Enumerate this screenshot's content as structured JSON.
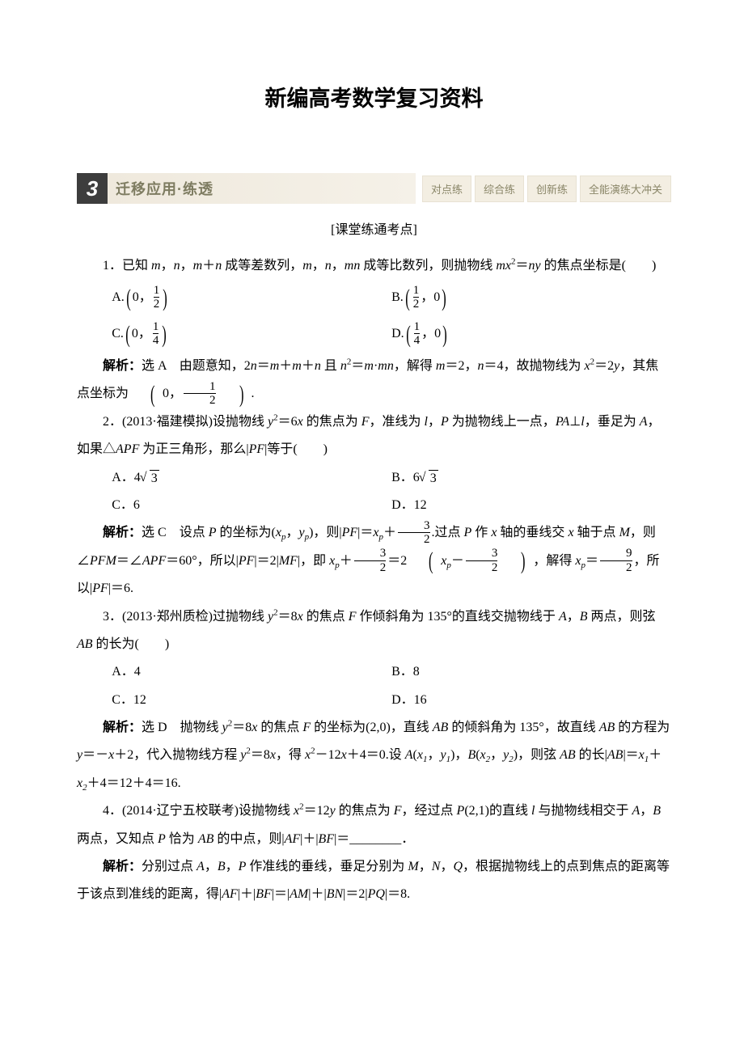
{
  "title": "新编高考数学复习资料",
  "header": {
    "num": "3",
    "label": "迁移应用·练透",
    "buttons": [
      "对点练",
      "综合练",
      "创新练",
      "全能演练大冲关"
    ]
  },
  "section_label": "[课堂练通考点]",
  "q1": {
    "stem_a": "1．已知 ",
    "stem_b": "m",
    "stem_c": "，",
    "stem_d": "n",
    "stem_e": "，",
    "stem_f": "m",
    "stem_g": "＋",
    "stem_h": "n",
    "stem_i": " 成等差数列，",
    "stem_j": "m",
    "stem_k": "，",
    "stem_l": "n",
    "stem_m": "，",
    "stem_n": "mn",
    "stem_o": " 成等比数列，则抛物线 ",
    "stem_p": "mx",
    "stem_q": "＝",
    "stem_r": "ny",
    "stem_s": " 的焦点坐标是(　　)",
    "optA_pre": "A.",
    "optA_1": "0，",
    "optA_num": "1",
    "optA_den": "2",
    "optB_pre": "B.",
    "optB_num": "1",
    "optB_den": "2",
    "optB_2": "，0",
    "optC_pre": "C.",
    "optC_1": "0，",
    "optC_num": "1",
    "optC_den": "4",
    "optD_pre": "D.",
    "optD_num": "1",
    "optD_den": "4",
    "optD_2": "，0",
    "expl_label": "解析：",
    "expl_a": "选 A　由题意知，2",
    "expl_b": "n",
    "expl_c": "＝",
    "expl_d": "m",
    "expl_e": "＋",
    "expl_f": "m",
    "expl_g": "＋",
    "expl_h": "n",
    "expl_i": " 且 ",
    "expl_j": "n",
    "expl_k": "＝",
    "expl_l": "m",
    "expl_m": "·",
    "expl_n": "mn",
    "expl_o": "，解得 ",
    "expl_p": "m",
    "expl_q": "＝2，",
    "expl_r": "n",
    "expl_s": "＝4，故抛物线为 ",
    "expl_t": "x",
    "expl_u": "＝2",
    "expl_v": "y",
    "expl_w": "，其焦点坐标为",
    "expl_x": "0，",
    "expl_num": "1",
    "expl_den": "2",
    "expl_end": "."
  },
  "q2": {
    "stem_a": "2．(2013·福建模拟)设抛物线 ",
    "stem_b": "y",
    "stem_c": "＝6",
    "stem_d": "x",
    "stem_e": " 的焦点为 ",
    "stem_f": "F",
    "stem_g": "，准线为 ",
    "stem_h": "l",
    "stem_i": "，",
    "stem_j": "P",
    "stem_k": " 为抛物线上一点，",
    "stem_l": "PA",
    "stem_m": "⊥",
    "stem_n": "l",
    "stem_o": "，垂足为 ",
    "stem_p": "A",
    "stem_q": "，如果△",
    "stem_r": "APF",
    "stem_s": " 为正三角形，那么|",
    "stem_t": "PF",
    "stem_u": "|等于(　　)",
    "optA": "A．4",
    "optA_r": "3",
    "optB": "B．6",
    "optB_r": "3",
    "optC": "C．6",
    "optD": "D．12",
    "expl_label": "解析：",
    "e1": "选 C　设点 ",
    "e2": "P",
    "e3": " 的坐标为(",
    "e4": "x",
    "e5": "，",
    "e6": "y",
    "e7": ")，则|",
    "e8": "PF",
    "e9": "|＝",
    "e10": "x",
    "e11": "＋",
    "e_num1": "3",
    "e_den1": "2",
    "e12": ".过点 ",
    "e13": "P",
    "e14": " 作 ",
    "e15": "x",
    "e16": " 轴的垂线交 ",
    "e17": "x",
    "e18": " 轴于点 ",
    "e19": "M",
    "e20": "，则∠",
    "e21": "PFM",
    "e22": "＝∠",
    "e23": "APF",
    "e24": "＝60°，所以|",
    "e25": "PF",
    "e26": "|＝2|",
    "e27": "MF",
    "e28": "|，即 ",
    "e29": "x",
    "e30": "＋",
    "e_num2": "3",
    "e_den2": "2",
    "e31": "＝2",
    "e32": "x",
    "e33": "－",
    "e_num3": "3",
    "e_den3": "2",
    "e34": "，解得 ",
    "e35": "x",
    "e36": "＝",
    "e_num4": "9",
    "e_den4": "2",
    "e37": "，所以|",
    "e38": "PF",
    "e39": "|＝6."
  },
  "q3": {
    "stem_a": "3．(2013·郑州质检)过抛物线 ",
    "stem_b": "y",
    "stem_c": "＝8",
    "stem_d": "x",
    "stem_e": " 的焦点 ",
    "stem_f": "F",
    "stem_g": " 作倾斜角为 135°的直线交抛物线于 ",
    "stem_h": "A",
    "stem_i": "，",
    "stem_j": "B",
    "stem_k": " 两点，则弦 ",
    "stem_l": "AB",
    "stem_m": " 的长为(　　)",
    "optA": "A．4",
    "optB": "B．8",
    "optC": "C．12",
    "optD": "D．16",
    "expl_label": "解析：",
    "e1": "选 D　抛物线 ",
    "e2": "y",
    "e3": "＝8",
    "e4": "x",
    "e5": " 的焦点 ",
    "e6": "F",
    "e7": " 的坐标为(2,0)，直线 ",
    "e8": "AB",
    "e9": " 的倾斜角为 135°，故直线 ",
    "e10": "AB",
    "e11": " 的方程为 ",
    "e12": "y",
    "e13": "＝－",
    "e14": "x",
    "e15": "＋2，代入抛物线方程 ",
    "e16": "y",
    "e17": "＝8",
    "e18": "x",
    "e19": "，得 ",
    "e20": "x",
    "e21": "－12",
    "e22": "x",
    "e23": "＋4＝0.设 ",
    "e24": "A",
    "e25": "(",
    "e26": "x",
    "e27": "，",
    "e28": "y",
    "e29": ")，",
    "e30": "B",
    "e31": "(",
    "e32": "x",
    "e33": "，",
    "e34": "y",
    "e35": ")，则弦 ",
    "e36": "AB",
    "e37": " 的长|",
    "e38": "AB",
    "e39": "|＝",
    "e40": "x",
    "e41": "＋",
    "e42": "x",
    "e43": "＋4＝12＋4＝16."
  },
  "q4": {
    "stem_a": "4．(2014·辽宁五校联考)设抛物线 ",
    "stem_b": "x",
    "stem_c": "＝12",
    "stem_d": "y",
    "stem_e": " 的焦点为 ",
    "stem_f": "F",
    "stem_g": "，经过点 ",
    "stem_h": "P",
    "stem_i": "(2,1)的直线 ",
    "stem_j": "l",
    "stem_k": " 与抛物线相交于 ",
    "stem_l": "A",
    "stem_m": "，",
    "stem_n": "B",
    "stem_o": " 两点，又知点 ",
    "stem_p": "P",
    "stem_q": " 恰为 ",
    "stem_r": "AB",
    "stem_s": " 的中点，则|",
    "stem_t": "AF",
    "stem_u": "|＋|",
    "stem_v": "BF",
    "stem_w": "|＝________．",
    "expl_label": "解析：",
    "e1": "分别过点 ",
    "e2": "A",
    "e3": "，",
    "e4": "B",
    "e5": "，",
    "e6": "P",
    "e7": " 作准线的垂线，垂足分别为 ",
    "e8": "M",
    "e9": "，",
    "e10": "N",
    "e11": "，",
    "e12": "Q",
    "e13": "，根据抛物线上的点到焦点的距离等于该点到准线的距离，得|",
    "e14": "AF",
    "e15": "|＋|",
    "e16": "BF",
    "e17": "|＝|",
    "e18": "AM",
    "e19": "|＋|",
    "e20": "BN",
    "e21": "|＝2|",
    "e22": "PQ",
    "e23": "|＝8."
  }
}
